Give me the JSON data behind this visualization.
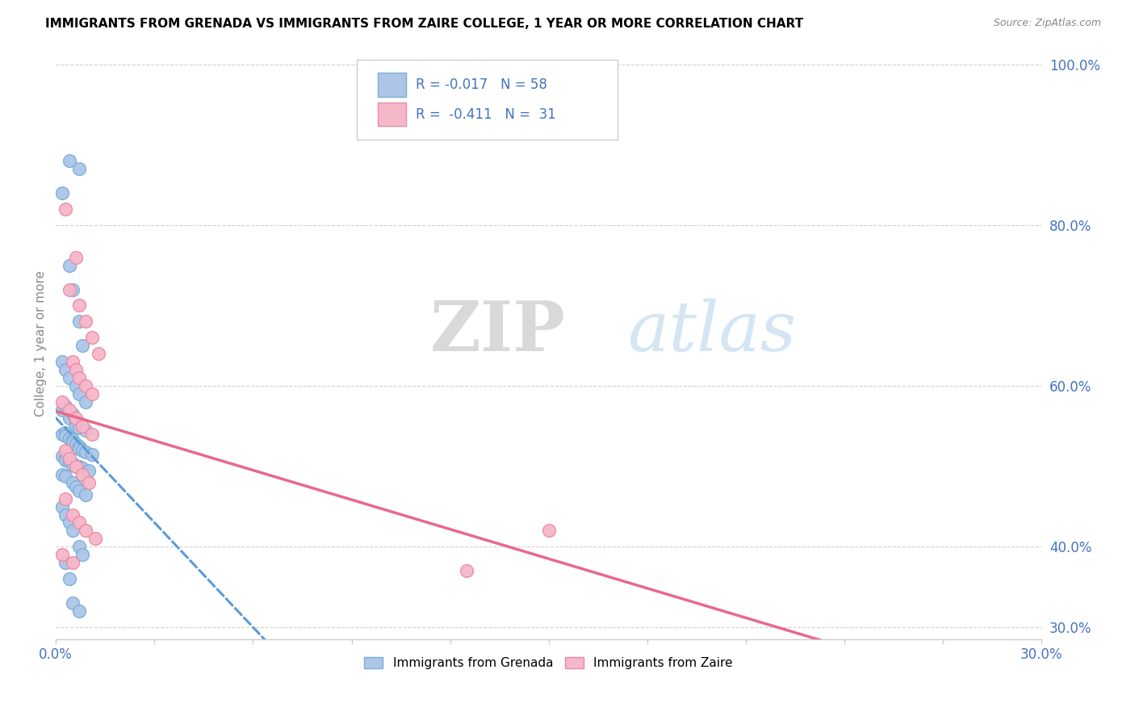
{
  "title": "IMMIGRANTS FROM GRENADA VS IMMIGRANTS FROM ZAIRE COLLEGE, 1 YEAR OR MORE CORRELATION CHART",
  "source": "Source: ZipAtlas.com",
  "ylabel": "College, 1 year or more",
  "color_grenada_fill": "#adc6e8",
  "color_zaire_fill": "#f5b8c8",
  "color_grenada_edge": "#7aaed6",
  "color_zaire_edge": "#f087a8",
  "color_grenada_line": "#5b9bd5",
  "color_zaire_line": "#e8698a",
  "legend_color": "#4472c4",
  "grenada_x": [
    0.004,
    0.007,
    0.002,
    0.004,
    0.005,
    0.007,
    0.008,
    0.002,
    0.003,
    0.004,
    0.006,
    0.007,
    0.009,
    0.002,
    0.003,
    0.004,
    0.005,
    0.006,
    0.006,
    0.007,
    0.009,
    0.002,
    0.003,
    0.003,
    0.004,
    0.005,
    0.005,
    0.006,
    0.007,
    0.007,
    0.008,
    0.009,
    0.011,
    0.002,
    0.003,
    0.003,
    0.004,
    0.005,
    0.005,
    0.007,
    0.008,
    0.01,
    0.002,
    0.003,
    0.005,
    0.006,
    0.007,
    0.009,
    0.002,
    0.003,
    0.004,
    0.005,
    0.007,
    0.008,
    0.003,
    0.004,
    0.005,
    0.007
  ],
  "grenada_y": [
    0.88,
    0.87,
    0.84,
    0.75,
    0.72,
    0.68,
    0.65,
    0.63,
    0.62,
    0.61,
    0.6,
    0.59,
    0.58,
    0.57,
    0.575,
    0.56,
    0.565,
    0.555,
    0.55,
    0.548,
    0.545,
    0.54,
    0.542,
    0.538,
    0.535,
    0.533,
    0.53,
    0.528,
    0.525,
    0.522,
    0.52,
    0.518,
    0.515,
    0.513,
    0.51,
    0.508,
    0.506,
    0.504,
    0.502,
    0.5,
    0.498,
    0.495,
    0.49,
    0.488,
    0.48,
    0.475,
    0.47,
    0.465,
    0.45,
    0.44,
    0.43,
    0.42,
    0.4,
    0.39,
    0.38,
    0.36,
    0.33,
    0.32
  ],
  "zaire_x": [
    0.003,
    0.006,
    0.004,
    0.007,
    0.009,
    0.011,
    0.013,
    0.005,
    0.006,
    0.007,
    0.009,
    0.011,
    0.002,
    0.004,
    0.006,
    0.008,
    0.011,
    0.003,
    0.004,
    0.006,
    0.008,
    0.01,
    0.003,
    0.005,
    0.007,
    0.009,
    0.012,
    0.15,
    0.002,
    0.005,
    0.125
  ],
  "zaire_y": [
    0.82,
    0.76,
    0.72,
    0.7,
    0.68,
    0.66,
    0.64,
    0.63,
    0.62,
    0.61,
    0.6,
    0.59,
    0.58,
    0.57,
    0.56,
    0.55,
    0.54,
    0.52,
    0.51,
    0.5,
    0.49,
    0.48,
    0.46,
    0.44,
    0.43,
    0.42,
    0.41,
    0.42,
    0.39,
    0.38,
    0.37
  ],
  "xlim": [
    0.0,
    0.3
  ],
  "ylim": [
    0.285,
    1.02
  ],
  "yticks_right": [
    0.3,
    0.4,
    0.6,
    0.8,
    1.0
  ],
  "ytick_labels_right": [
    "30.0%",
    "40.0%",
    "60.0%",
    "80.0%",
    "100.0%"
  ],
  "xticks": [
    0.0,
    0.03,
    0.06,
    0.09,
    0.12,
    0.15,
    0.18,
    0.21,
    0.24,
    0.27,
    0.3
  ],
  "xtick_labels": [
    "0.0%",
    "",
    "",
    "",
    "",
    "",
    "",
    "",
    "",
    "",
    "30.0%"
  ],
  "zip_color": "#c8c8c8",
  "atlas_color": "#c8dff0"
}
